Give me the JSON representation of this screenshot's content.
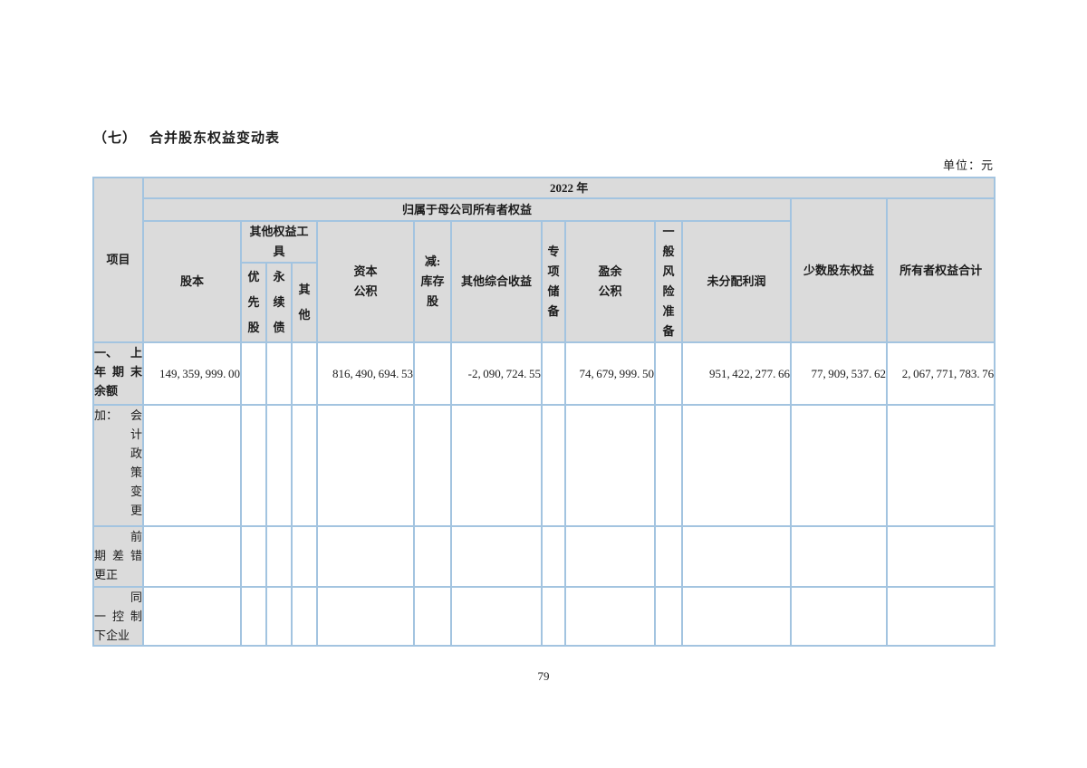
{
  "page": {
    "section_label": "（七）",
    "title": "合并股东权益变动表",
    "unit_label": "单位：元",
    "page_number": "79"
  },
  "table": {
    "item_header": "项目",
    "year_header": "2022 年",
    "parent_equity_header": "归属于母公司所有者权益",
    "columns": {
      "share_capital": "股本",
      "other_equity_group": "其他权益工\n具",
      "preferred_shares": "优\n先\n股",
      "perpetual_bonds": "永\n续\n债",
      "other_instruments": "其\n他",
      "capital_reserve": "资本\n公积",
      "less_treasury_shares": "减:\n库存\n股",
      "other_comprehensive_income": "其他综合收益",
      "special_reserve": "专\n项\n储\n备",
      "surplus_reserve": "盈余\n公积",
      "general_risk_reserve": "一\n般\n风\n险\n准\n备",
      "undistributed_profit": "未分配利润",
      "minority_interest": "少数股东权益",
      "total_owners_equity": "所有者权益合计"
    },
    "rows": [
      {
        "label": "一、上年期末余额",
        "emphasis": true,
        "label_lines": [
          {
            "segs": [
              "一、",
              "上"
            ]
          },
          {
            "segs": [
              "年",
              "期",
              "末"
            ]
          },
          {
            "segs": [
              "余额"
            ],
            "align": "l"
          }
        ],
        "values": [
          "149,359,999.00",
          "",
          "",
          "",
          "816,490,694.53",
          "",
          "-2,090,724.55",
          "",
          "74,679,999.50",
          "",
          "951,422,277.66",
          "77,909,537.62",
          "2,067,771,783.76"
        ]
      },
      {
        "label": "加：会计政策变更",
        "emphasis": false,
        "label_lines": [
          {
            "segs": [
              "加：",
              "会"
            ]
          },
          {
            "segs": [
              "计"
            ],
            "align": "r"
          },
          {
            "segs": [
              "政"
            ],
            "align": "r"
          },
          {
            "segs": [
              "策"
            ],
            "align": "r"
          },
          {
            "segs": [
              "变"
            ],
            "align": "r"
          },
          {
            "segs": [
              "更"
            ],
            "align": "r"
          }
        ],
        "values": [
          "",
          "",
          "",
          "",
          "",
          "",
          "",
          "",
          "",
          "",
          "",
          "",
          ""
        ]
      },
      {
        "label": "前期差错更正",
        "emphasis": false,
        "label_lines": [
          {
            "segs": [
              "前"
            ],
            "align": "r"
          },
          {
            "segs": [
              "期",
              "差",
              "错"
            ]
          },
          {
            "segs": [
              "更正"
            ],
            "align": "l"
          }
        ],
        "values": [
          "",
          "",
          "",
          "",
          "",
          "",
          "",
          "",
          "",
          "",
          "",
          "",
          ""
        ]
      },
      {
        "label": "同一控制下企业",
        "emphasis": false,
        "label_lines": [
          {
            "segs": [
              "同"
            ],
            "align": "r"
          },
          {
            "segs": [
              "一",
              "控",
              "制"
            ]
          },
          {
            "segs": [
              "下企业"
            ],
            "align": "l"
          }
        ],
        "values": [
          "",
          "",
          "",
          "",
          "",
          "",
          "",
          "",
          "",
          "",
          "",
          "",
          ""
        ]
      }
    ]
  },
  "colors": {
    "border": "#a3c4e0",
    "header_bg": "#dbdbdb",
    "text": "#1c1c1c"
  }
}
